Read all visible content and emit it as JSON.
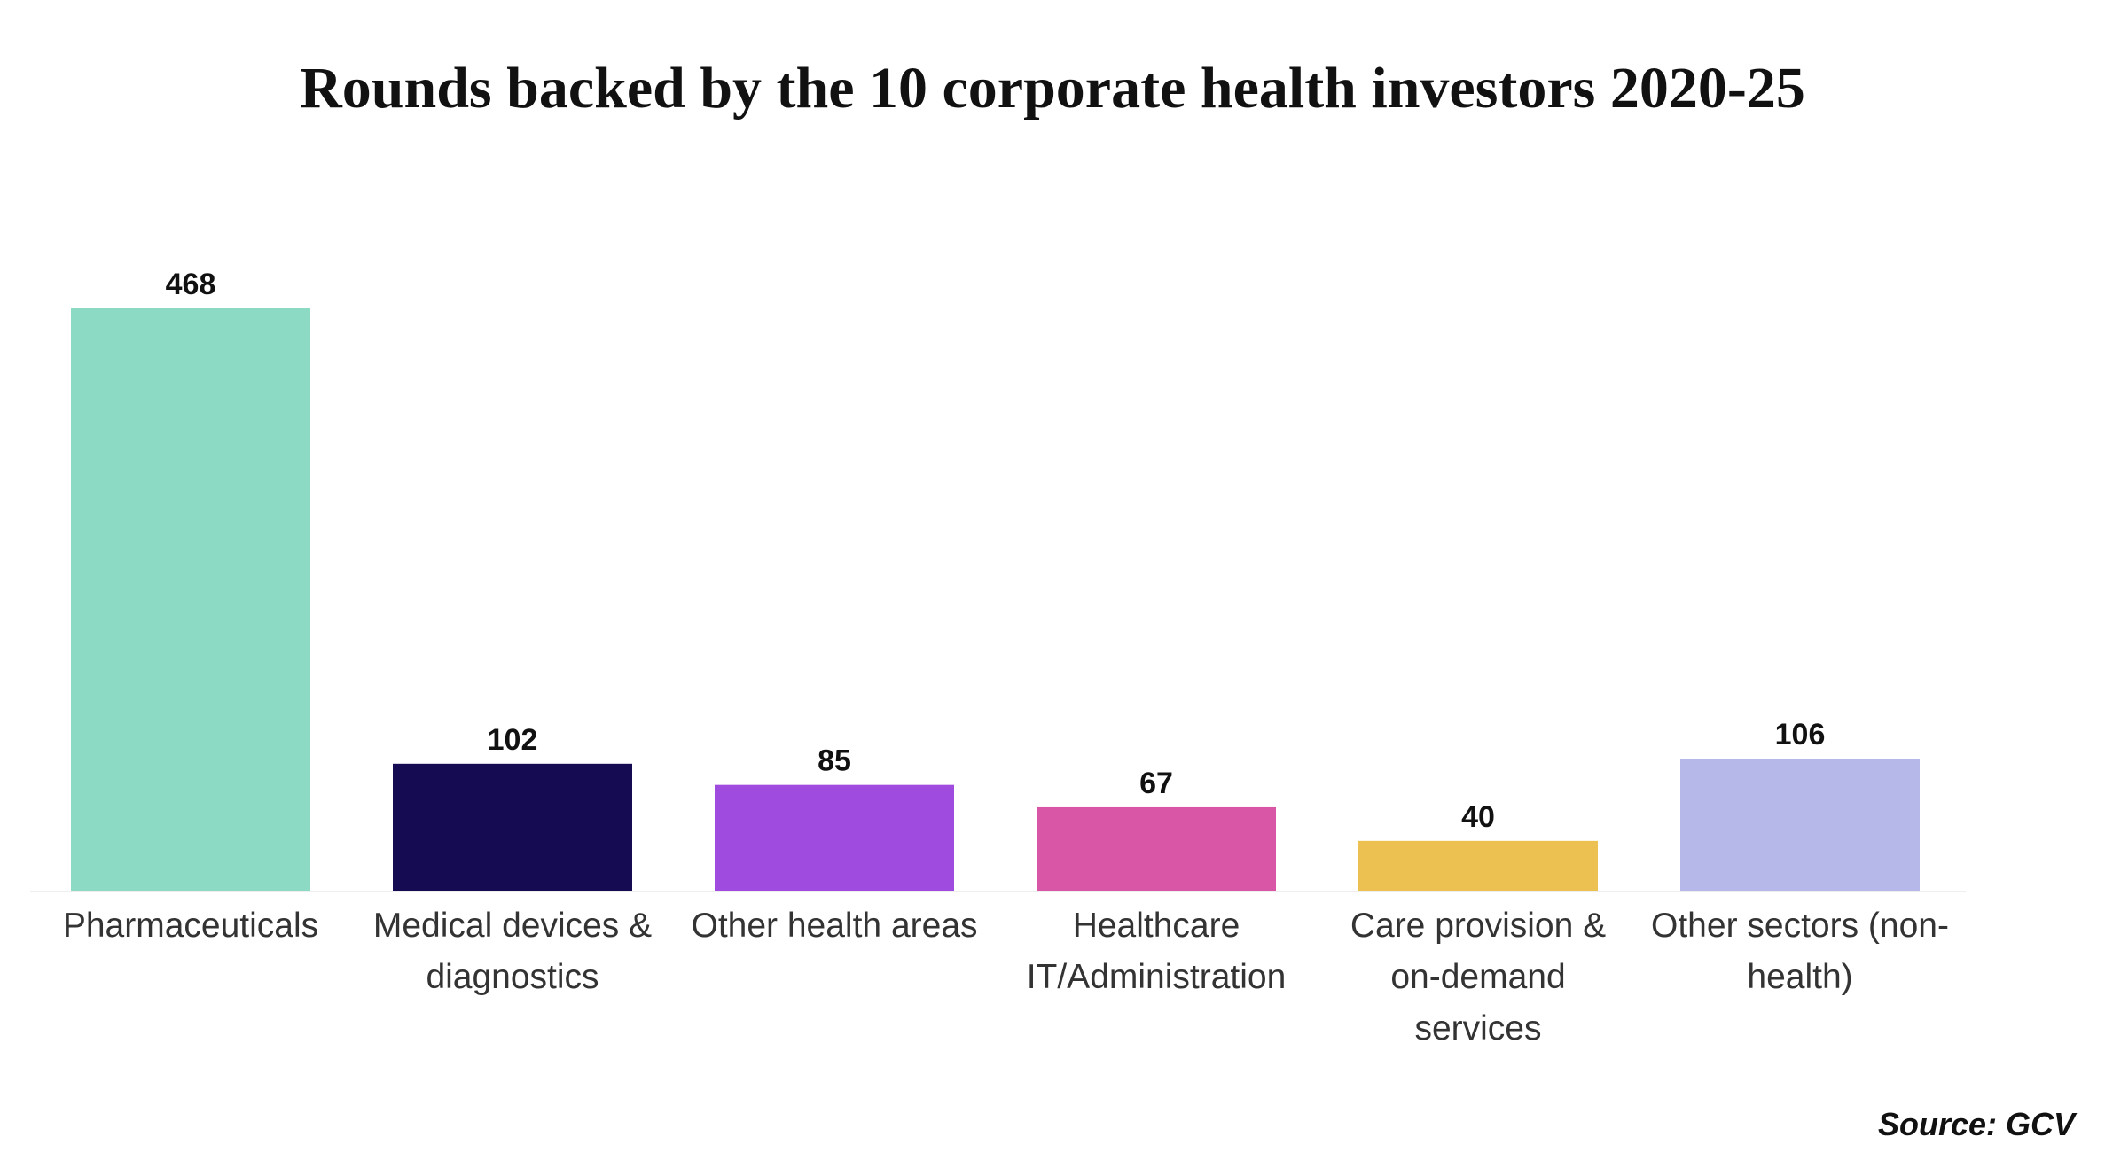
{
  "chart_data": {
    "type": "bar",
    "title": "Rounds backed by the 10 corporate health investors 2020-25",
    "categories": [
      "Pharmaceuticals",
      "Medical devices & diagnostics",
      "Other health areas",
      "Healthcare IT/Administration",
      "Care provision & on-demand services",
      "Other sectors (non-health)"
    ],
    "values": [
      468,
      102,
      85,
      67,
      40,
      106
    ],
    "colors": [
      "#8cd9c4",
      "#150b52",
      "#a04bdf",
      "#d955a6",
      "#ecc152",
      "#b6b8ea"
    ],
    "source": "Source: GCV"
  }
}
